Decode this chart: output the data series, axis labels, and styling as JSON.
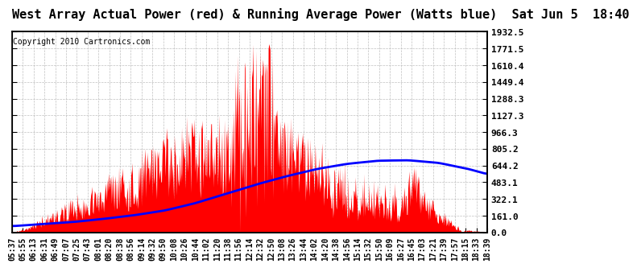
{
  "title": "West Array Actual Power (red) & Running Average Power (Watts blue)  Sat Jun 5  18:40",
  "copyright": "Copyright 2010 Cartronics.com",
  "yticks": [
    0.0,
    161.0,
    322.1,
    483.1,
    644.2,
    805.2,
    966.3,
    1127.3,
    1288.3,
    1449.4,
    1610.4,
    1771.5,
    1932.5
  ],
  "ymax": 1932.5,
  "ymin": 0.0,
  "bg_color": "#ffffff",
  "grid_color": "#b0b0b0",
  "fill_color": "#ff0000",
  "avg_color": "#0000ff",
  "title_fontsize": 11,
  "copyright_fontsize": 7,
  "tick_fontsize": 8,
  "x_tick_labels": [
    "05:37",
    "05:55",
    "06:13",
    "06:31",
    "06:49",
    "07:07",
    "07:25",
    "07:43",
    "08:01",
    "08:20",
    "08:38",
    "08:56",
    "09:14",
    "09:32",
    "09:50",
    "10:08",
    "10:26",
    "10:44",
    "11:02",
    "11:20",
    "11:38",
    "11:56",
    "12:14",
    "12:32",
    "12:50",
    "13:08",
    "13:26",
    "13:44",
    "14:02",
    "14:20",
    "14:38",
    "14:56",
    "15:14",
    "15:32",
    "15:50",
    "16:09",
    "16:27",
    "16:45",
    "17:03",
    "17:21",
    "17:39",
    "17:57",
    "18:15",
    "18:33",
    "18:39"
  ],
  "n_points": 780,
  "avg_line_x": [
    0,
    50,
    100,
    150,
    200,
    250,
    300,
    350,
    400,
    450,
    500,
    550,
    600,
    650,
    700,
    750,
    780
  ],
  "avg_line_y": [
    60,
    80,
    100,
    130,
    165,
    210,
    280,
    370,
    460,
    540,
    610,
    660,
    690,
    695,
    670,
    610,
    560
  ]
}
